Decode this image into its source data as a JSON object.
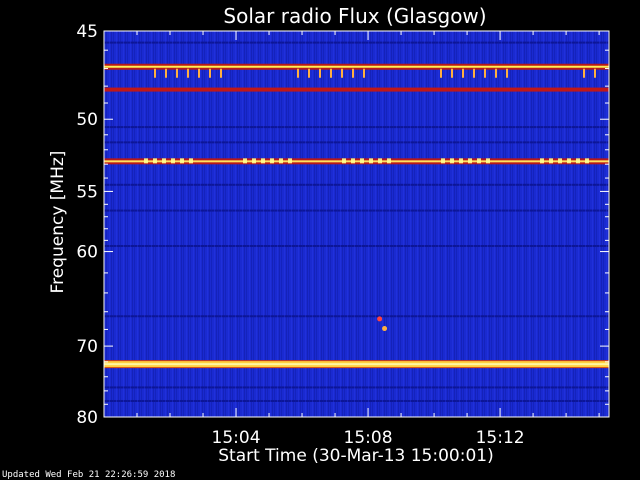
{
  "chart_data": {
    "type": "heatmap",
    "title": "Solar radio Flux (Glasgow)",
    "xlabel": "Start Time (30-Mar-13 15:00:01)",
    "ylabel": "Frequency [MHz]",
    "x_unit": "minutes since 15:00:01",
    "xlim": [
      0,
      15.3
    ],
    "ylim": [
      45,
      80
    ],
    "y_scale": "reciprocal",
    "x_ticks": [
      {
        "value": 4,
        "label": "15:04"
      },
      {
        "value": 8,
        "label": "15:08"
      },
      {
        "value": 12,
        "label": "15:12"
      }
    ],
    "y_ticks": [
      {
        "value": 45,
        "label": "45"
      },
      {
        "value": 50,
        "label": "50"
      },
      {
        "value": 55,
        "label": "55"
      },
      {
        "value": 60,
        "label": "60"
      },
      {
        "value": 70,
        "label": "70"
      },
      {
        "value": 80,
        "label": "80"
      }
    ],
    "background_color": "#1a2ad0",
    "bright_bands": [
      {
        "freq_mhz": 46.9,
        "intensity": "high",
        "color": "#ffee55"
      },
      {
        "freq_mhz": 48.2,
        "intensity": "medium",
        "color": "#c01818"
      },
      {
        "freq_mhz": 52.8,
        "intensity": "high",
        "color": "#ffe060"
      },
      {
        "freq_mhz": 72.3,
        "intensity": "very-high",
        "color": "#fff6a0"
      }
    ],
    "faint_bands_mhz": [
      45.6,
      50.5,
      51.5,
      54.5,
      56.5,
      59.5,
      66.5,
      75.5,
      77.5
    ],
    "spots": [
      {
        "x": 8.35,
        "freq_mhz": 66.8,
        "color": "#ff4040"
      },
      {
        "x": 8.5,
        "freq_mhz": 67.9,
        "color": "#ffb040"
      }
    ],
    "grid": false,
    "footer_text": "Updated Wed Feb 21 22:26:59 2018"
  }
}
